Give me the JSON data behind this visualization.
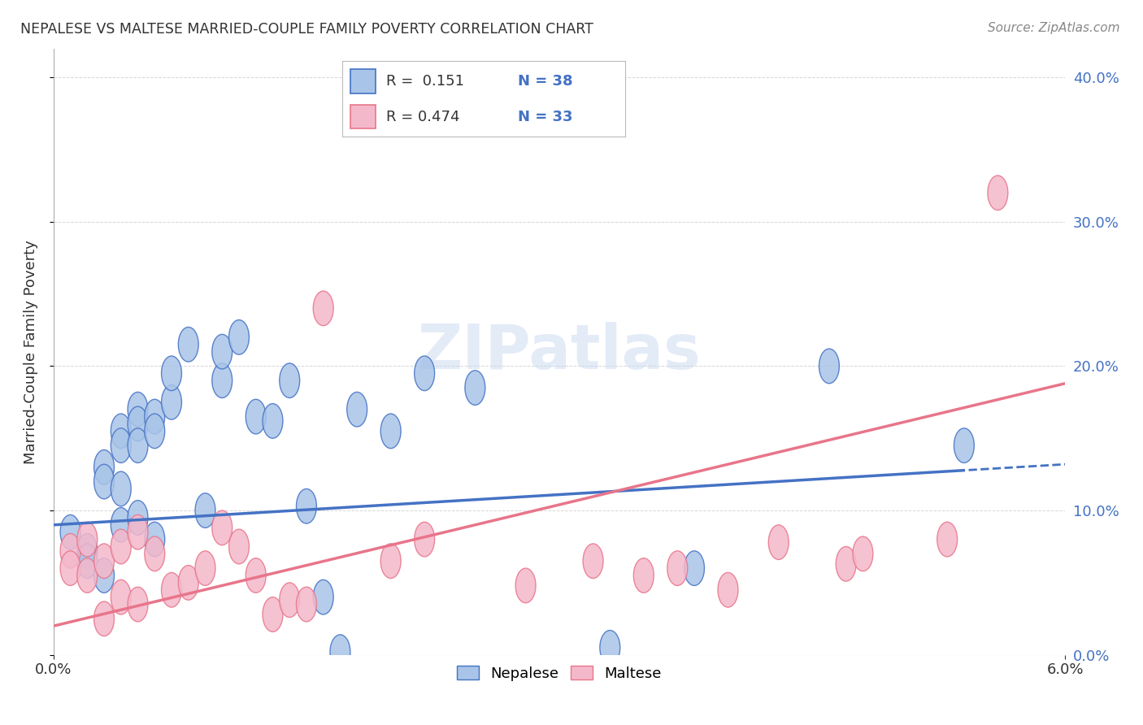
{
  "title": "NEPALESE VS MALTESE MARRIED-COUPLE FAMILY POVERTY CORRELATION CHART",
  "source": "Source: ZipAtlas.com",
  "ylabel": "Married-Couple Family Poverty",
  "xlabel": "",
  "xlim": [
    0.0,
    0.06
  ],
  "ylim": [
    0.0,
    0.42
  ],
  "xticks": [
    0.0,
    0.06
  ],
  "yticks": [
    0.0,
    0.1,
    0.2,
    0.3,
    0.4
  ],
  "nepalese_R": 0.151,
  "nepalese_N": 38,
  "maltese_R": 0.474,
  "maltese_N": 33,
  "nepalese_color": "#a8c4e8",
  "maltese_color": "#f4b8cb",
  "nepalese_line_color": "#4472c4",
  "maltese_line_color": "#e8758a",
  "nepalese_x": [
    0.001,
    0.002,
    0.002,
    0.003,
    0.003,
    0.003,
    0.004,
    0.004,
    0.004,
    0.004,
    0.005,
    0.005,
    0.005,
    0.005,
    0.006,
    0.006,
    0.006,
    0.007,
    0.007,
    0.008,
    0.009,
    0.01,
    0.01,
    0.011,
    0.012,
    0.013,
    0.014,
    0.015,
    0.016,
    0.017,
    0.018,
    0.02,
    0.022,
    0.025,
    0.033,
    0.038,
    0.046,
    0.054
  ],
  "nepalese_y": [
    0.085,
    0.072,
    0.065,
    0.13,
    0.12,
    0.055,
    0.155,
    0.145,
    0.115,
    0.09,
    0.17,
    0.16,
    0.145,
    0.095,
    0.165,
    0.155,
    0.08,
    0.175,
    0.195,
    0.215,
    0.1,
    0.19,
    0.21,
    0.22,
    0.165,
    0.162,
    0.19,
    0.103,
    0.04,
    0.002,
    0.17,
    0.155,
    0.195,
    0.185,
    0.005,
    0.06,
    0.2,
    0.145
  ],
  "maltese_x": [
    0.001,
    0.001,
    0.002,
    0.002,
    0.003,
    0.003,
    0.004,
    0.004,
    0.005,
    0.005,
    0.006,
    0.007,
    0.008,
    0.009,
    0.01,
    0.011,
    0.012,
    0.013,
    0.014,
    0.015,
    0.016,
    0.02,
    0.022,
    0.028,
    0.032,
    0.035,
    0.037,
    0.04,
    0.043,
    0.047,
    0.048,
    0.053,
    0.056
  ],
  "maltese_y": [
    0.072,
    0.06,
    0.08,
    0.055,
    0.065,
    0.025,
    0.075,
    0.04,
    0.085,
    0.035,
    0.07,
    0.045,
    0.05,
    0.06,
    0.088,
    0.075,
    0.055,
    0.028,
    0.038,
    0.035,
    0.24,
    0.065,
    0.08,
    0.048,
    0.065,
    0.055,
    0.06,
    0.045,
    0.078,
    0.063,
    0.07,
    0.08,
    0.32
  ],
  "nepalese_intercept": 0.09,
  "nepalese_slope": 0.7,
  "maltese_intercept": 0.02,
  "maltese_slope": 2.8,
  "watermark": "ZIPatlas",
  "background_color": "#ffffff",
  "grid_color": "#cccccc"
}
